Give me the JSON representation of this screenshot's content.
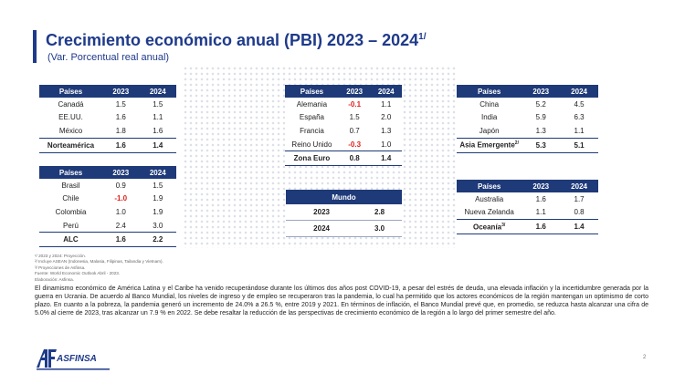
{
  "header": {
    "title": "Crecimiento económico anual (PBI) 2023 – 2024",
    "title_note": "1/",
    "subtitle": "(Var. Porcentual real anual)"
  },
  "tables": [
    {
      "columns": [
        "Países",
        "2023",
        "2024"
      ],
      "rows": [
        [
          "Canadá",
          "1.5",
          "1.5"
        ],
        [
          "EE.UU.",
          "1.6",
          "1.1"
        ],
        [
          "México",
          "1.8",
          "1.6"
        ]
      ],
      "total": [
        "Norteamérica",
        "1.6",
        "1.4"
      ]
    },
    {
      "columns": [
        "Países",
        "2023",
        "2024"
      ],
      "rows": [
        [
          "Brasil",
          "0.9",
          "1.5"
        ],
        [
          "Chile",
          "-1.0",
          "1.9"
        ],
        [
          "Colombia",
          "1.0",
          "1.9"
        ],
        [
          "Perú",
          "2.4",
          "3.0"
        ]
      ],
      "total": [
        "ALC",
        "1.6",
        "2.2"
      ]
    },
    {
      "columns": [
        "Países",
        "2023",
        "2024"
      ],
      "rows": [
        [
          "Alemania",
          "-0.1",
          "1.1"
        ],
        [
          "España",
          "1.5",
          "2.0"
        ],
        [
          "Francia",
          "0.7",
          "1.3"
        ],
        [
          "Reino Unido",
          "-0.3",
          "1.0"
        ]
      ],
      "total": [
        "Zona Euro",
        "0.8",
        "1.4"
      ]
    },
    {
      "columns": [
        "Países",
        "2023",
        "2024"
      ],
      "rows": [
        [
          "China",
          "5.2",
          "4.5"
        ],
        [
          "India",
          "5.9",
          "6.3"
        ],
        [
          "Japón",
          "1.3",
          "1.1"
        ]
      ],
      "total": [
        "Asia Emergente",
        "5.3",
        "5.1"
      ],
      "total_note": "2/"
    },
    {
      "columns": [
        "Países",
        "2023",
        "2024"
      ],
      "rows": [
        [
          "Australia",
          "1.6",
          "1.7"
        ],
        [
          "Nueva Zelanda",
          "1.1",
          "0.8"
        ]
      ],
      "total": [
        "Oceanía",
        "1.6",
        "1.4"
      ],
      "total_note": "3/"
    }
  ],
  "world": {
    "title": "Mundo",
    "rows": [
      [
        "2023",
        "2.8"
      ],
      [
        "2024",
        "3.0"
      ]
    ]
  },
  "footnotes": [
    "¹/ 2023 y 2024: Proyección.",
    "²/ Incluye ASEAN (Indonesia, Malasia, Filipinas, Tailandia y Vietnam).",
    "³/ Proyecciones de Asfinsa.",
    "Fuente: World Economic Outlook Abril - 2023.",
    "Elaboración: Asfinsa."
  ],
  "body": "El dinamismo económico de América Latina y el Caribe ha venido recuperándose durante los últimos dos años post COVID-19, a pesar del estrés de deuda, una elevada inflación y la incertidumbre generada por la guerra en Ucrania. De acuerdo al Banco Mundial, los niveles de ingreso y de empleo se recuperaron tras la pandemia, lo cual ha permitido que los actores económicos de la región mantengan un optimismo de corto plazo. En cuanto a la pobreza, la pandemia generó un incremento de 24.0% a 26.5 %, entre 2019 y 2021. En términos de inflación, el Banco Mundial prevé que, en promedio, se reduzca hasta alcanzar una cifra de 5.0% al cierre de 2023, tras alcanzar un 7.9 % en 2022. Se debe resaltar la reducción de las perspectivas de crecimiento económico de la región a lo largo del primer semestre del año.",
  "logo": {
    "text": "ASFINSA"
  },
  "page_number": "2"
}
